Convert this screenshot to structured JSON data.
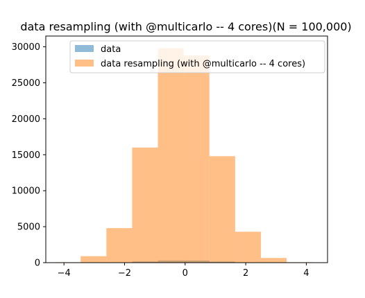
{
  "chart_data": {
    "type": "bar",
    "title": "data resampling (with @multicarlo -- 4 cores)(N = 100,000)",
    "xlabel": "",
    "ylabel": "",
    "xlim": [
      -4.6,
      4.7
    ],
    "ylim": [
      0,
      31500
    ],
    "x_ticks": [
      -4,
      -2,
      0,
      2,
      4
    ],
    "x_tick_labels": [
      "−4",
      "−2",
      "0",
      "2",
      "4"
    ],
    "y_ticks": [
      0,
      5000,
      10000,
      15000,
      20000,
      25000,
      30000
    ],
    "y_tick_labels": [
      "0",
      "5000",
      "10000",
      "15000",
      "20000",
      "25000",
      "30000"
    ],
    "grid": false,
    "legend_position": "top",
    "series": [
      {
        "name": "data",
        "color": "#1f77b4",
        "opacity": 0.5,
        "bins": [
          {
            "x0": -4.3,
            "x1": -3.45,
            "value": 1
          },
          {
            "x0": -3.45,
            "x1": -2.6,
            "value": 8
          },
          {
            "x0": -2.6,
            "x1": -1.75,
            "value": 48
          },
          {
            "x0": -1.75,
            "x1": -0.9,
            "value": 160
          },
          {
            "x0": -0.9,
            "x1": -0.05,
            "value": 298
          },
          {
            "x0": -0.05,
            "x1": 0.8,
            "value": 288
          },
          {
            "x0": 0.8,
            "x1": 1.65,
            "value": 148
          },
          {
            "x0": 1.65,
            "x1": 2.5,
            "value": 43
          },
          {
            "x0": 2.5,
            "x1": 3.35,
            "value": 6
          },
          {
            "x0": 3.35,
            "x1": 4.2,
            "value": 1
          }
        ]
      },
      {
        "name": "data resampling (with @multicarlo -- 4 cores)",
        "color": "#ff7f0e",
        "opacity": 0.5,
        "bins": [
          {
            "x0": -4.3,
            "x1": -3.45,
            "value": 60
          },
          {
            "x0": -3.45,
            "x1": -2.6,
            "value": 900
          },
          {
            "x0": -2.6,
            "x1": -1.75,
            "value": 4800
          },
          {
            "x0": -1.75,
            "x1": -0.9,
            "value": 16000
          },
          {
            "x0": -0.9,
            "x1": -0.05,
            "value": 29800
          },
          {
            "x0": -0.05,
            "x1": 0.8,
            "value": 28800
          },
          {
            "x0": 0.8,
            "x1": 1.65,
            "value": 14800
          },
          {
            "x0": 1.65,
            "x1": 2.5,
            "value": 4300
          },
          {
            "x0": 2.5,
            "x1": 3.35,
            "value": 650
          },
          {
            "x0": 3.35,
            "x1": 4.2,
            "value": 60
          }
        ]
      }
    ]
  }
}
